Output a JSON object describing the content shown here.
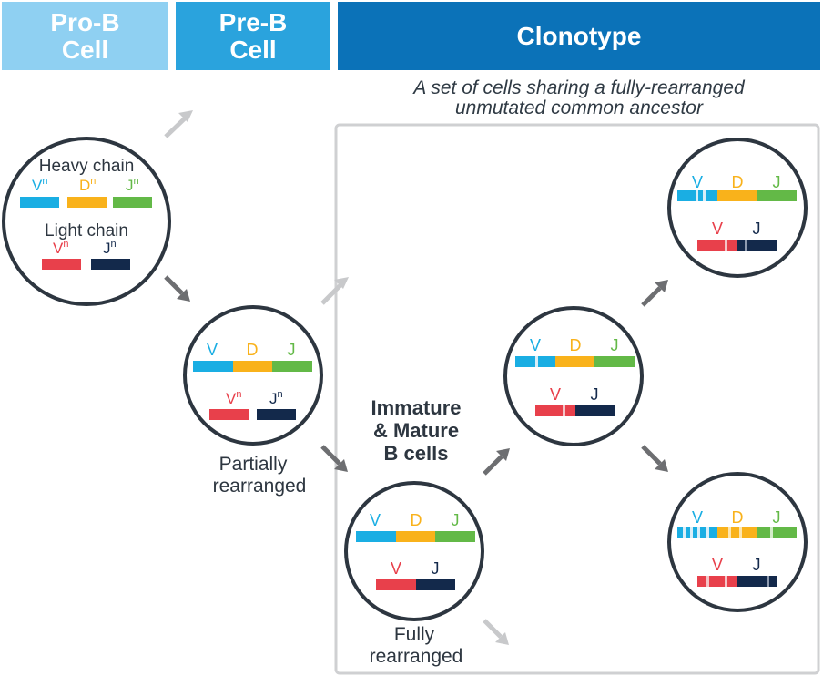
{
  "headers": {
    "pro_b": "Pro-B\nCell",
    "pre_b": "Pre-B\nCell",
    "clonotype": "Clonotype"
  },
  "clonotype_caption": "A set of cells sharing a fully-rearranged\nunmutated common ancestor",
  "prob_cell": {
    "heavy_label": "Heavy chain",
    "light_label": "Light chain",
    "v": "V",
    "d": "D",
    "j": "J",
    "sup": "n"
  },
  "gene_labels": {
    "v": "V",
    "d": "D",
    "j": "J"
  },
  "text_labels": {
    "partially_1": "Partially",
    "partially_2": "rearranged",
    "fully_1": "Fully",
    "fully_2": "rearranged",
    "immature_1": "Immature",
    "immature_2": "& Mature",
    "immature_3": "B cells"
  },
  "colors": {
    "v_segment": "#1aaee3",
    "d_segment": "#f9b21b",
    "j_heavy": "#63b947",
    "v_light": "#e8404b",
    "j_light": "#13294b",
    "circle_stroke": "#2d3640",
    "arrow_dark": "#6d6e71",
    "arrow_light": "#c8c9cb",
    "box_stroke": "#cfd0d2"
  }
}
